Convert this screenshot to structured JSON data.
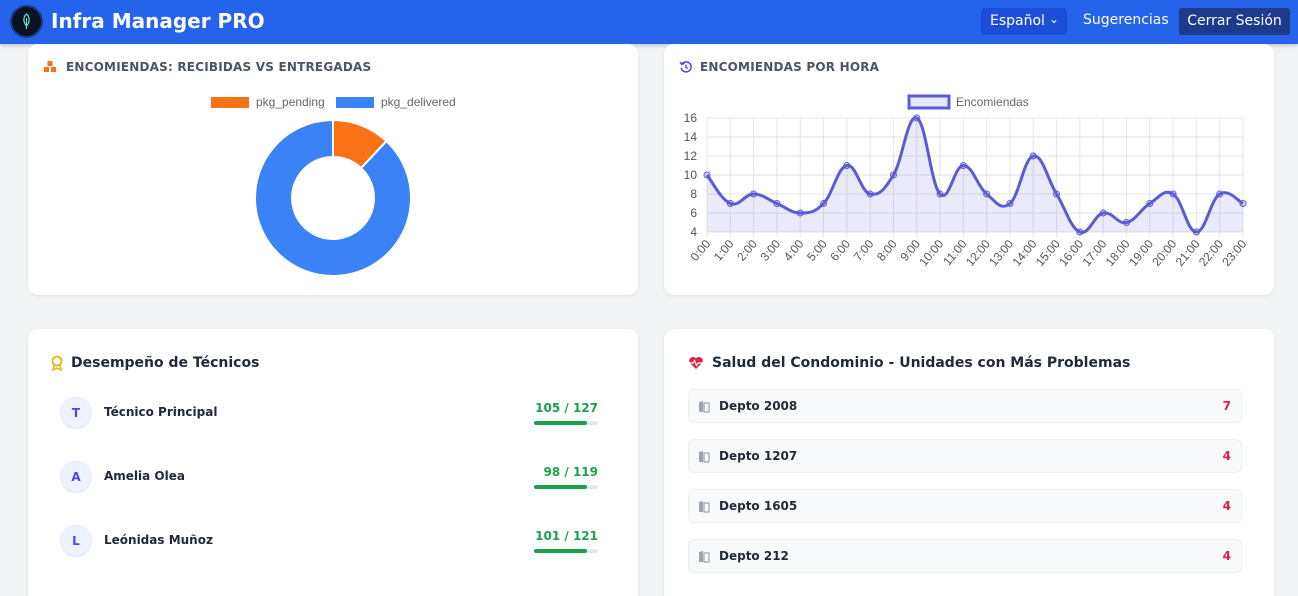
{
  "navbar": {
    "brand": "Infra Manager PRO",
    "language": "Español",
    "suggestions": "Sugerencias",
    "logout": "Cerrar Sesión"
  },
  "packages_card": {
    "title": "ENCOMIENDAS: RECIBIDAS VS ENTREGADAS",
    "icon": "boxes-icon"
  },
  "hourly_card": {
    "title": "ENCOMIENDAS POR HORA",
    "icon": "history-icon"
  },
  "technicians_card": {
    "title": "Desempeño de Técnicos",
    "icon": "award-icon",
    "items": [
      {
        "initial": "T",
        "name": "Técnico Principal",
        "score": "105 / 127",
        "done": 105,
        "total": 127
      },
      {
        "initial": "A",
        "name": "Amelia Olea",
        "score": "98 / 119",
        "done": 98,
        "total": 119
      },
      {
        "initial": "L",
        "name": "Leónidas Muñoz",
        "score": "101 / 121",
        "done": 101,
        "total": 121
      }
    ]
  },
  "units_card": {
    "title": "Salud del Condominio - Unidades con Más Problemas",
    "icon": "heart-pulse-icon",
    "items": [
      {
        "name": "Depto 2008",
        "count": "7"
      },
      {
        "name": "Depto 1207",
        "count": "4"
      },
      {
        "name": "Depto 1605",
        "count": "4"
      },
      {
        "name": "Depto 212",
        "count": "4"
      }
    ]
  },
  "colors": {
    "primary": "#2563eb",
    "pending": "#f97316",
    "delivered": "#3b82f6",
    "line": "#5b5bd6",
    "success": "#16a34a",
    "danger": "#e11d48"
  },
  "chart_data": [
    {
      "type": "pie",
      "variant": "doughnut",
      "labels": [
        "pkg_pending",
        "pkg_delivered"
      ],
      "values": [
        12,
        88
      ],
      "colors": [
        "#f97316",
        "#3b82f6"
      ],
      "legend": "top"
    },
    {
      "type": "line",
      "fill": true,
      "smooth": true,
      "categories": [
        "0:00",
        "1:00",
        "2:00",
        "3:00",
        "4:00",
        "5:00",
        "6:00",
        "7:00",
        "8:00",
        "9:00",
        "10:00",
        "11:00",
        "12:00",
        "13:00",
        "14:00",
        "15:00",
        "16:00",
        "17:00",
        "18:00",
        "19:00",
        "20:00",
        "21:00",
        "22:00",
        "23:00"
      ],
      "series": [
        {
          "name": "Encomiendas",
          "values": [
            10,
            7,
            8,
            7,
            6,
            7,
            11,
            8,
            10,
            16,
            8,
            11,
            8,
            7,
            12,
            8,
            4,
            6,
            5,
            7,
            8,
            4,
            8,
            7
          ]
        }
      ],
      "ylim": [
        4,
        16
      ],
      "yticks": [
        4,
        6,
        8,
        10,
        12,
        14,
        16
      ],
      "grid": true,
      "legend": "top"
    }
  ]
}
